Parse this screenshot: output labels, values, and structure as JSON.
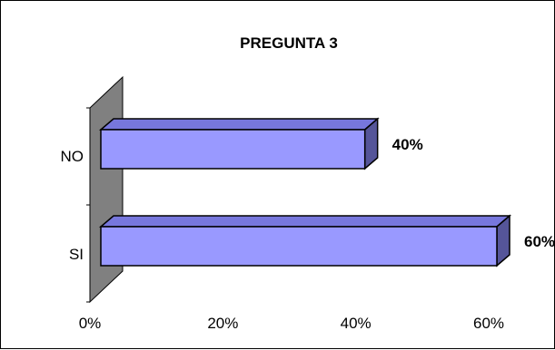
{
  "chart_data": {
    "type": "bar",
    "orientation": "horizontal",
    "style": "3d",
    "title": "PREGUNTA 3",
    "categories": [
      "NO",
      "SI"
    ],
    "values": [
      40,
      60
    ],
    "value_labels": [
      "40%",
      "60%"
    ],
    "xlim": [
      0,
      60
    ],
    "x_ticks": [
      "0%",
      "20%",
      "40%",
      "60%"
    ],
    "grid": false,
    "legend": "none",
    "colors": {
      "bar_front": "#9999ff",
      "bar_top": "#7777dd",
      "bar_side": "#555599",
      "wall": "#808080",
      "frame": "#000000"
    }
  }
}
